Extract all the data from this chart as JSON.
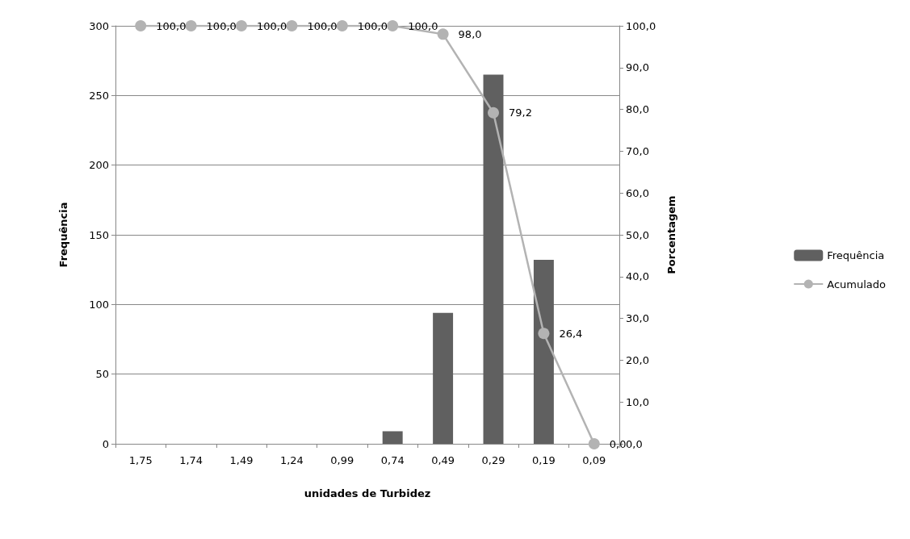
{
  "chart_data": {
    "type": "bar",
    "xlabel": "unidades de Turbidez",
    "ylabel": "Frequência",
    "y2label": "Porcentagem",
    "categories": [
      "1,75",
      "1,74",
      "1,49",
      "1,24",
      "0,99",
      "0,74",
      "0,49",
      "0,29",
      "0,19",
      "0,09"
    ],
    "series": [
      {
        "name": "Frequência",
        "color": "#606060",
        "values": [
          0,
          0,
          0,
          0,
          0,
          9,
          94,
          265,
          132,
          0
        ]
      },
      {
        "name": "Acumulado",
        "type": "line",
        "axis": "y2",
        "color": "#b3b3b3",
        "marker": "circle",
        "values": [
          100,
          100,
          100,
          100,
          100,
          100,
          98,
          79.2,
          26.4,
          0
        ],
        "value_labels": [
          "100,0",
          "100,0",
          "100,0",
          "100,0",
          "100,0",
          "100,0",
          "98,0",
          "79,2",
          "26,4",
          "0,0"
        ]
      }
    ],
    "ylim": [
      0,
      300
    ],
    "yticks": [
      0,
      50,
      100,
      150,
      200,
      250,
      300
    ],
    "y2lim": [
      0,
      100
    ],
    "y2ticks": [
      {
        "value": 0,
        "label": "0,0"
      },
      {
        "value": 10,
        "label": "10,0"
      },
      {
        "value": 20,
        "label": "20,0"
      },
      {
        "value": 30,
        "label": "30,0"
      },
      {
        "value": 40,
        "label": "40,0"
      },
      {
        "value": 50,
        "label": "50,0"
      },
      {
        "value": 60,
        "label": "60,0"
      },
      {
        "value": 70,
        "label": "70,0"
      },
      {
        "value": 80,
        "label": "80,0"
      },
      {
        "value": 90,
        "label": "90,0"
      },
      {
        "value": 100,
        "label": "100,0"
      }
    ],
    "grid": "y",
    "legend": "right"
  }
}
